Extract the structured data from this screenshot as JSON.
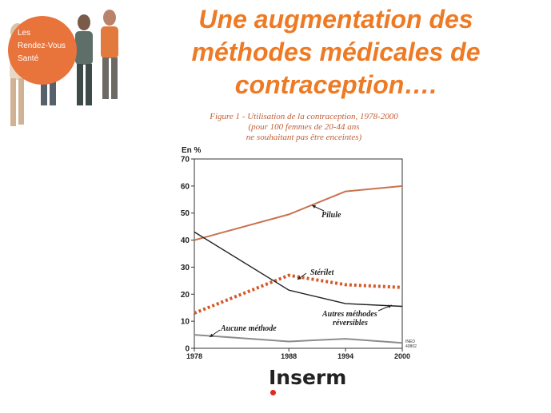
{
  "badge": {
    "line1": "Les",
    "line2": "Rendez-Vous",
    "line3": "Santé"
  },
  "title": {
    "line1": "Une augmentation des",
    "line2": "méthodes médicales de",
    "line3": "contraception…."
  },
  "logo": {
    "text": "Inserm",
    "accent_color": "#e3261c"
  },
  "colors": {
    "title": "#ee7a24",
    "badge": "#e8743c",
    "pilule": "#c8734f",
    "sterilet": "#d25a2a",
    "autres": "#1e1e1e",
    "aucune": "#8c8c8c"
  },
  "chart_data": {
    "type": "line",
    "title_lines": [
      "Figure 1 - Utilisation de la contraception, 1978-2000",
      "(pour 100 femmes de 20-44 ans",
      "ne souhaitant pas être enceintes)"
    ],
    "ylabel": "En %",
    "xlabel": "",
    "ylim": [
      0,
      70
    ],
    "xlim": [
      1978,
      2000
    ],
    "yticks": [
      "0",
      "10",
      "20",
      "30",
      "40",
      "50",
      "60",
      "70"
    ],
    "xticks": [
      "1978",
      "1988",
      "1994",
      "2000"
    ],
    "grid": false,
    "source_note": [
      "INED",
      "40802"
    ],
    "series": [
      {
        "name": "Pilule",
        "style": "solid",
        "x": [
          1978,
          1988,
          1994,
          2000
        ],
        "y": [
          40,
          49.5,
          58,
          60
        ]
      },
      {
        "name": "Stérilet",
        "style": "dotted-thick",
        "x": [
          1978,
          1988,
          1994,
          2000
        ],
        "y": [
          13,
          27,
          23.5,
          22.5
        ]
      },
      {
        "name": "Autres méthodes réversibles",
        "name_lines": [
          "Autres méthodes",
          "réversibles"
        ],
        "style": "solid",
        "x": [
          1978,
          1988,
          1994,
          2000
        ],
        "y": [
          43,
          21.5,
          16.5,
          15.5
        ]
      },
      {
        "name": "Aucune méthode",
        "style": "solid",
        "x": [
          1978,
          1988,
          1994,
          2000
        ],
        "y": [
          5,
          2.5,
          3.5,
          2
        ]
      }
    ]
  }
}
